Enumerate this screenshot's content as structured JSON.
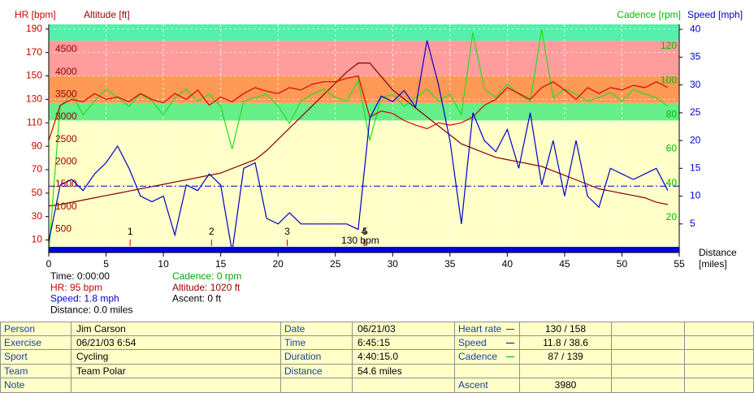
{
  "chart_data": {
    "type": "line",
    "grid": true,
    "x": [
      0,
      1,
      2,
      3,
      4,
      5,
      6,
      7,
      8,
      9,
      10,
      11,
      12,
      13,
      14,
      15,
      16,
      17,
      18,
      19,
      20,
      21,
      22,
      23,
      24,
      25,
      26,
      27,
      28,
      29,
      30,
      31,
      32,
      33,
      34,
      35,
      36,
      37,
      38,
      39,
      40,
      41,
      42,
      43,
      44,
      45,
      46,
      47,
      48,
      49,
      50,
      51,
      52,
      53,
      54
    ],
    "xlim": [
      0,
      55
    ],
    "xticks": [
      0,
      5,
      10,
      15,
      20,
      25,
      30,
      35,
      40,
      45,
      50,
      55
    ],
    "xlabel": "Distance",
    "xlabel_unit": "[miles]",
    "axes": {
      "hr": {
        "label": "HR [bpm]",
        "color": "#cc0000",
        "lim": [
          0,
          194
        ],
        "ticks": [
          10,
          30,
          50,
          70,
          90,
          110,
          130,
          150,
          170,
          190
        ]
      },
      "altitude": {
        "label": "Altitude [ft]",
        "color": "#990000",
        "lim": [
          0,
          5060
        ],
        "ticks": [
          500,
          1000,
          1500,
          2000,
          2500,
          3000,
          3500,
          4000,
          4500
        ]
      },
      "cadence": {
        "label": "Cadence [rpm]",
        "color": "#00bb00",
        "lim": [
          0,
          132.8
        ],
        "ticks": [
          20,
          40,
          60,
          80,
          100,
          120
        ]
      },
      "speed": {
        "label": "Speed [mph]",
        "color": "#0000cc",
        "lim": [
          0,
          40.9
        ],
        "ticks": [
          5,
          10,
          15,
          20,
          25,
          30,
          35,
          40
        ]
      }
    },
    "zones": [
      {
        "from": 0,
        "to": 112,
        "color": "#ffffc8"
      },
      {
        "from": 112,
        "to": 127,
        "color": "#66ee88"
      },
      {
        "from": 127,
        "to": 150,
        "color": "#ff9955"
      },
      {
        "from": 150,
        "to": 180,
        "color": "#ff9c9c"
      },
      {
        "from": 180,
        "to": 194,
        "color": "#55eeaa"
      }
    ],
    "series": [
      {
        "name": "Altitude",
        "axis": "altitude",
        "color": "#880000",
        "values": [
          1020,
          1050,
          1100,
          1150,
          1200,
          1250,
          1300,
          1350,
          1400,
          1450,
          1500,
          1550,
          1600,
          1650,
          1700,
          1750,
          1850,
          1950,
          2050,
          2250,
          2500,
          2750,
          3000,
          3250,
          3500,
          3750,
          4000,
          4200,
          4200,
          3900,
          3600,
          3400,
          3200,
          3000,
          2800,
          2600,
          2400,
          2300,
          2200,
          2100,
          2050,
          2000,
          1950,
          1900,
          1800,
          1700,
          1600,
          1500,
          1400,
          1350,
          1300,
          1250,
          1200,
          1100,
          1050
        ]
      },
      {
        "name": "Cadence",
        "axis": "cadence",
        "color": "#22dd22",
        "values": [
          0,
          85,
          92,
          80,
          88,
          95,
          90,
          85,
          92,
          88,
          80,
          90,
          95,
          88,
          92,
          85,
          60,
          88,
          90,
          92,
          85,
          75,
          88,
          92,
          95,
          90,
          88,
          100,
          65,
          90,
          92,
          85,
          90,
          95,
          88,
          92,
          80,
          128,
          95,
          90,
          98,
          92,
          88,
          130,
          90,
          95,
          92,
          88,
          90,
          93,
          88,
          95,
          92,
          90,
          85
        ]
      },
      {
        "name": "HR",
        "axis": "hr",
        "color": "#dd0000",
        "values": [
          95,
          125,
          130,
          128,
          135,
          130,
          132,
          128,
          135,
          130,
          127,
          135,
          130,
          138,
          125,
          132,
          128,
          135,
          140,
          137,
          135,
          140,
          138,
          143,
          145,
          145,
          148,
          150,
          115,
          120,
          118,
          112,
          108,
          105,
          110,
          108,
          110,
          115,
          125,
          130,
          140,
          135,
          130,
          140,
          145,
          138,
          130,
          140,
          135,
          140,
          138,
          142,
          140,
          145,
          140
        ]
      },
      {
        "name": "Speed",
        "axis": "speed",
        "color": "#0000cc",
        "values": [
          1.8,
          12,
          13,
          11,
          14,
          16,
          19,
          15,
          10,
          9,
          10,
          3,
          12,
          11,
          14,
          12,
          0,
          15,
          16,
          6,
          5,
          7,
          5,
          5,
          5,
          5,
          5,
          4,
          24,
          28,
          27,
          29,
          26,
          38,
          30,
          20,
          5,
          25,
          20,
          18,
          22,
          15,
          25,
          12,
          20,
          10,
          20,
          10,
          8,
          15,
          14,
          13,
          14,
          15,
          11
        ]
      }
    ],
    "average_speed": 11.8,
    "laps": [
      {
        "label": "1",
        "x": 7.1
      },
      {
        "label": "2",
        "x": 14.2
      },
      {
        "label": "3",
        "x": 20.8
      },
      {
        "label": "4",
        "x": 27.5
      },
      {
        "label": "5",
        "x": 27.6
      }
    ],
    "annotation": {
      "text": "130 bpm",
      "x": 27.6,
      "y": 9
    },
    "info": [
      [
        {
          "text": "Time: 0:00:00",
          "color": "#000000"
        },
        {
          "text": "HR: 95 bpm",
          "color": "#cc0000"
        },
        {
          "text": "Speed: 1.8 mph",
          "color": "#0000cc"
        },
        {
          "text": "Distance: 0.0 miles",
          "color": "#000000"
        }
      ],
      [
        {
          "text": "Cadence: 0 rpm",
          "color": "#00aa00"
        },
        {
          "text": "Altitude: 1020 ft",
          "color": "#990000"
        },
        {
          "text": "Ascent: 0 ft",
          "color": "#000000"
        }
      ]
    ]
  },
  "table": {
    "rows": [
      [
        "Person",
        "Jim Carson",
        "Date",
        "06/21/03",
        "Heart rate",
        "130 / 158",
        null,
        null
      ],
      [
        "Exercise",
        "06/21/03 6:54",
        "Time",
        "6:45:15",
        "Speed",
        "11.8 / 38.6",
        null,
        null
      ],
      [
        "Sport",
        "Cycling",
        "Duration",
        "4:40:15.0",
        "Cadence",
        "87 / 139",
        null,
        null
      ],
      [
        "Team",
        "Team Polar",
        "Distance",
        "54.6 miles",
        null,
        null,
        null,
        null
      ],
      [
        "Note",
        null,
        null,
        null,
        "Ascent",
        "3980",
        null,
        null
      ]
    ],
    "symbols": [
      "#cc0000",
      "#0000cc",
      "#00aa00",
      null,
      null
    ]
  }
}
